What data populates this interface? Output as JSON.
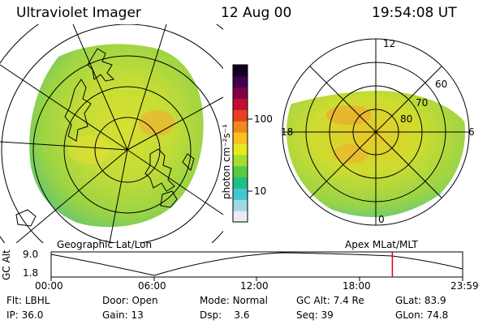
{
  "header": {
    "instrument": "Ultraviolet Imager",
    "date": "12 Aug 00",
    "time": "19:54:08 UT"
  },
  "panels": {
    "left_label": "Geographic Lat/Lon",
    "right_label": "Apex MLat/MLT"
  },
  "colorbar": {
    "unit_label": "photon cm⁻²s⁻¹",
    "tick_high": "100",
    "tick_low": "10",
    "colors": [
      "#e8eef0",
      "#9fd8e0",
      "#40c8d0",
      "#20c080",
      "#58cc40",
      "#a8dc30",
      "#e8e820",
      "#f8c020",
      "#f08820",
      "#e84020",
      "#c01030",
      "#800040",
      "#400050",
      "#100020"
    ]
  },
  "polar": {
    "mlt_labels": {
      "top": "12",
      "left": "18",
      "right": "6",
      "bottom": "0"
    },
    "lat_labels": [
      "80",
      "70",
      "60"
    ]
  },
  "altitude_plot": {
    "ylabel": "GC Alt",
    "y_max": "9.0",
    "y_min": "1.8",
    "x_ticks": [
      "00:00",
      "06:00",
      "12:00",
      "18:00",
      "23:59"
    ],
    "marker_hour": 19.9
  },
  "status": {
    "row1": [
      {
        "key": "Flt:",
        "value": "LBHL"
      },
      {
        "key": "Door:",
        "value": "Open"
      },
      {
        "key": "Mode:",
        "value": "Normal"
      },
      {
        "key": "GC Alt:",
        "value": "7.4 Re"
      },
      {
        "key": "GLat:",
        "value": "83.9"
      }
    ],
    "row2": [
      {
        "key": "IP:",
        "value": "36.0"
      },
      {
        "key": "Gain:",
        "value": "13"
      },
      {
        "key": "Dsp:",
        "value": "3.6"
      },
      {
        "key": "Seq:",
        "value": "39"
      },
      {
        "key": "GLon:",
        "value": "74.8"
      }
    ]
  }
}
